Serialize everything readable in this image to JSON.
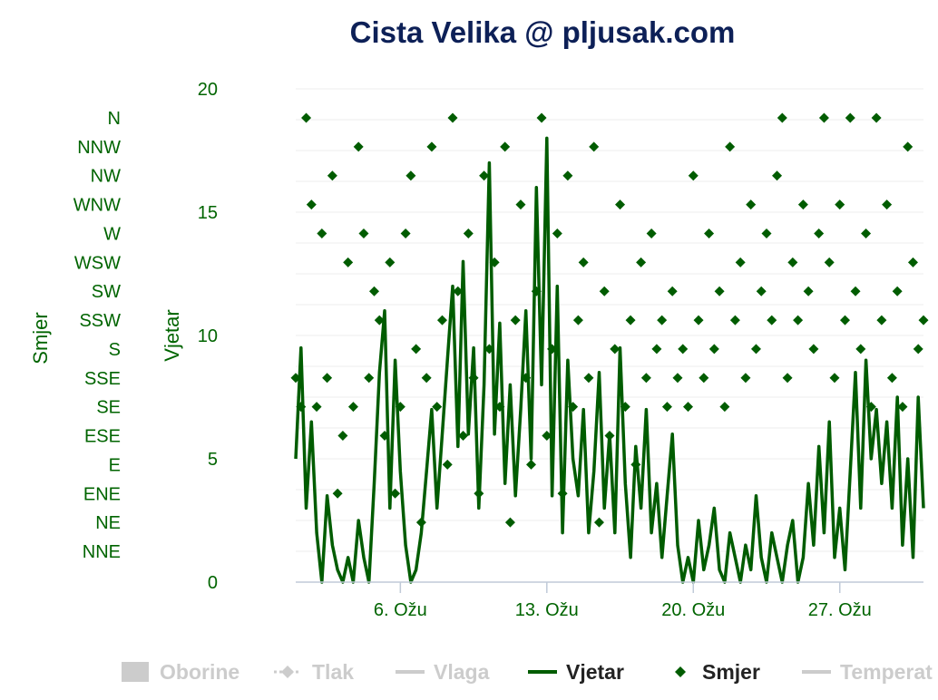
{
  "chart_data": {
    "type": "line",
    "title": "Cista Velika @ pljusak.com",
    "colors": {
      "title": "#0d2057",
      "series": "#005c00",
      "axis_text": "#006400",
      "legend_hidden": "#cccccc",
      "legend_active": "#222222",
      "grid": "#eeeeee",
      "axis_line": "#c0cad8"
    },
    "x_axis": {
      "type": "date",
      "range": [
        "2025-03-01",
        "2025-03-31"
      ],
      "ticks": [
        {
          "date": "2025-03-06",
          "label": "6. Ožu"
        },
        {
          "date": "2025-03-13",
          "label": "13. Ožu"
        },
        {
          "date": "2025-03-20",
          "label": "20. Ožu"
        },
        {
          "date": "2025-03-27",
          "label": "27. Ožu"
        }
      ]
    },
    "y_axes": [
      {
        "id": "vjetar",
        "title": "Vjetar",
        "range": [
          0,
          20
        ],
        "ticks": [
          "0",
          "5",
          "10",
          "15",
          "20"
        ]
      },
      {
        "id": "smjer",
        "title": "Smjer",
        "range": [
          0,
          17
        ],
        "categories": [
          "NNE",
          "NE",
          "ENE",
          "E",
          "ESE",
          "SE",
          "SSE",
          "S",
          "SSW",
          "SW",
          "WSW",
          "W",
          "WNW",
          "NW",
          "NNW",
          "N"
        ]
      }
    ],
    "legend": {
      "placement": "bottom",
      "items": [
        {
          "label": "Oborine",
          "symbol": "area",
          "active": false
        },
        {
          "label": "Tlak",
          "symbol": "dashed-diamond",
          "active": false
        },
        {
          "label": "Vlaga",
          "symbol": "line",
          "active": false
        },
        {
          "label": "Vjetar",
          "symbol": "line",
          "active": true
        },
        {
          "label": "Smjer",
          "symbol": "diamond",
          "active": true
        },
        {
          "label": "Temperat",
          "symbol": "line",
          "active": false
        }
      ]
    },
    "series": [
      {
        "name": "Vjetar",
        "type": "line",
        "axis": "vjetar",
        "x_start": "2025-03-01",
        "x_step_days": 0.25,
        "values": [
          5.0,
          9.5,
          3.0,
          6.5,
          2.0,
          0.0,
          3.5,
          1.5,
          0.5,
          0.0,
          1.0,
          0.0,
          2.5,
          1.0,
          0.0,
          4.0,
          8.5,
          11.0,
          3.0,
          9.0,
          4.5,
          1.5,
          0.0,
          0.5,
          2.0,
          4.5,
          7.0,
          3.0,
          6.0,
          9.0,
          12.0,
          5.5,
          13.0,
          6.0,
          9.5,
          3.0,
          8.0,
          17.0,
          6.0,
          10.5,
          4.0,
          8.0,
          3.5,
          7.0,
          11.0,
          5.0,
          16.0,
          8.0,
          18.0,
          3.5,
          12.0,
          2.0,
          9.0,
          5.0,
          3.5,
          7.0,
          2.0,
          4.5,
          8.5,
          3.0,
          6.0,
          2.0,
          9.5,
          4.0,
          1.0,
          5.5,
          3.0,
          7.0,
          2.0,
          4.0,
          1.0,
          3.5,
          6.0,
          1.5,
          0.0,
          1.0,
          0.0,
          2.5,
          0.5,
          1.5,
          3.0,
          0.5,
          0.0,
          2.0,
          1.0,
          0.0,
          1.5,
          0.5,
          3.5,
          1.0,
          0.0,
          2.0,
          1.0,
          0.0,
          1.5,
          2.5,
          0.0,
          1.0,
          4.0,
          1.5,
          5.5,
          2.0,
          6.5,
          1.0,
          3.0,
          0.5,
          4.5,
          8.5,
          3.0,
          9.0,
          5.0,
          7.0,
          4.0,
          6.5,
          3.0,
          7.5,
          1.5,
          5.0,
          1.0,
          7.5,
          3.0
        ]
      },
      {
        "name": "Smjer",
        "type": "scatter",
        "marker": "diamond",
        "axis": "smjer",
        "x_start": "2025-03-01",
        "x_step_days": 0.25,
        "values": [
          7,
          6,
          16,
          13,
          6,
          12,
          7,
          14,
          3,
          5,
          11,
          6,
          15,
          12,
          7,
          10,
          9,
          5,
          11,
          3,
          6,
          12,
          14,
          8,
          2,
          7,
          15,
          6,
          9,
          4,
          16,
          10,
          5,
          12,
          7,
          3,
          14,
          8,
          11,
          6,
          15,
          2,
          9,
          13,
          7,
          4,
          10,
          16,
          5,
          8,
          12,
          3,
          14,
          6,
          9,
          11,
          7,
          15,
          2,
          10,
          5,
          8,
          13,
          6,
          9,
          4,
          11,
          7,
          12,
          8,
          9,
          6,
          10,
          7,
          8,
          6,
          14,
          9,
          7,
          12,
          8,
          10,
          6,
          15,
          9,
          11,
          7,
          13,
          8,
          10,
          12,
          9,
          14,
          16,
          7,
          11,
          9,
          13,
          10,
          8,
          12,
          16,
          11,
          7,
          13,
          9,
          16,
          10,
          8,
          12,
          6,
          16,
          9,
          13,
          7,
          10,
          6,
          15,
          11,
          8,
          9
        ]
      }
    ]
  }
}
